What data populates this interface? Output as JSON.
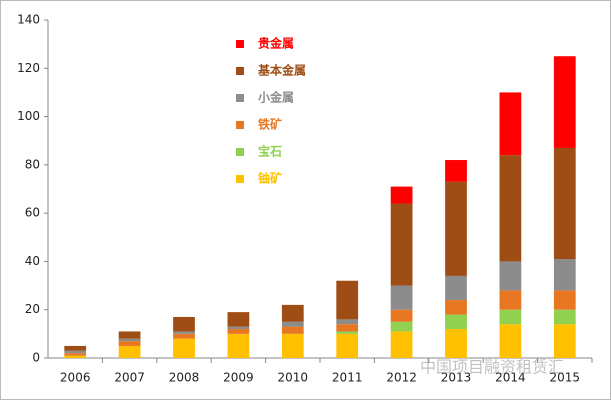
{
  "chart_data": {
    "type": "stacked_bar",
    "categories": [
      "2006",
      "2007",
      "2008",
      "2009",
      "2010",
      "2011",
      "2012",
      "2013",
      "2014",
      "2015"
    ],
    "series": [
      {
        "name": "铀矿",
        "color": "#ffc000",
        "values": [
          1,
          5,
          8,
          10,
          10,
          10,
          11,
          12,
          14,
          14
        ]
      },
      {
        "name": "宝石",
        "color": "#92d050",
        "values": [
          0,
          0,
          0,
          0,
          0,
          1,
          4,
          6,
          6,
          6
        ]
      },
      {
        "name": "铁矿",
        "color": "#e87722",
        "values": [
          1,
          2,
          2,
          2,
          3,
          3,
          5,
          6,
          8,
          8
        ]
      },
      {
        "name": "小金属",
        "color": "#8c8c8c",
        "values": [
          1,
          1,
          1,
          1,
          2,
          2,
          10,
          10,
          12,
          13
        ]
      },
      {
        "name": "基本金属",
        "color": "#9e4d14",
        "values": [
          2,
          3,
          6,
          6,
          7,
          16,
          34,
          39,
          44,
          46
        ]
      },
      {
        "name": "贵金属",
        "color": "#ff0000",
        "values": [
          0,
          0,
          0,
          0,
          0,
          0,
          7,
          9,
          26,
          38
        ]
      }
    ],
    "ylim": [
      0,
      140
    ],
    "yticks": [
      0,
      20,
      40,
      60,
      80,
      100,
      120,
      140
    ],
    "grid": false,
    "watermark": "中国项目融资租赁汇"
  }
}
